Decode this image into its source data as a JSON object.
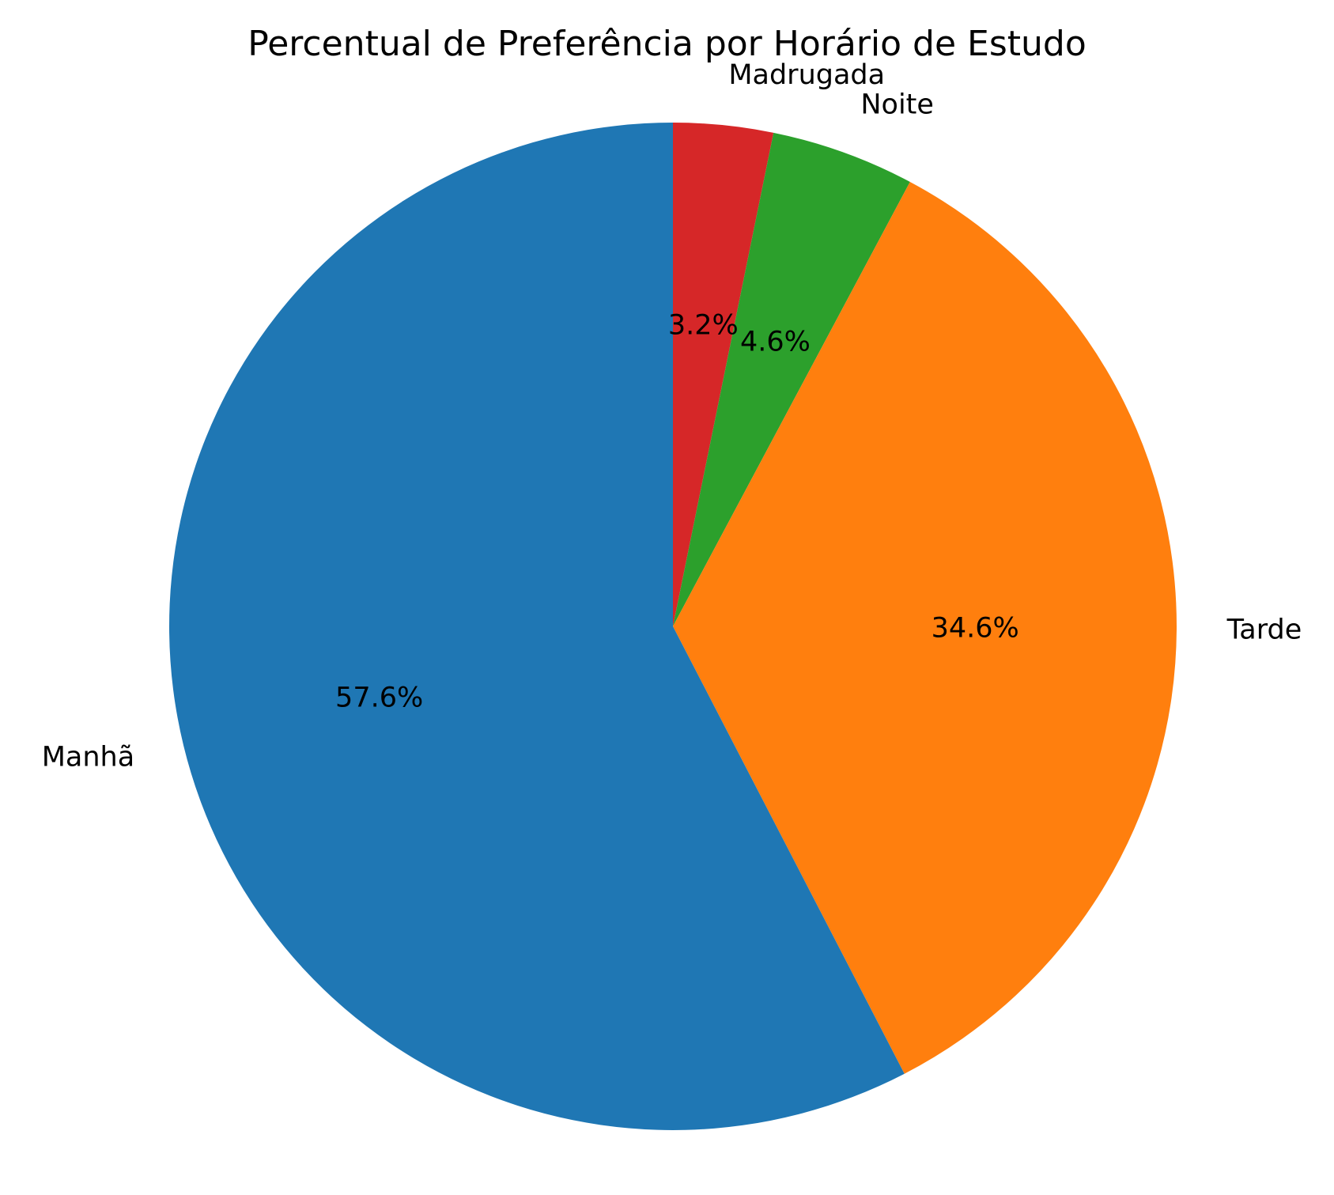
{
  "chart_data": {
    "type": "pie",
    "title": "Percentual de Preferência por Horário de Estudo",
    "start_angle_deg": 90,
    "direction": "clockwise",
    "slices": [
      {
        "label": "Madrugada",
        "value": 3.2,
        "value_label": "3.2%",
        "color": "#d62728"
      },
      {
        "label": "Noite",
        "value": 4.6,
        "value_label": "4.6%",
        "color": "#2ca02c"
      },
      {
        "label": "Tarde",
        "value": 34.6,
        "value_label": "34.6%",
        "color": "#ff7f0e"
      },
      {
        "label": "Manhã",
        "value": 57.6,
        "value_label": "57.6%",
        "color": "#1f77b4"
      }
    ]
  }
}
